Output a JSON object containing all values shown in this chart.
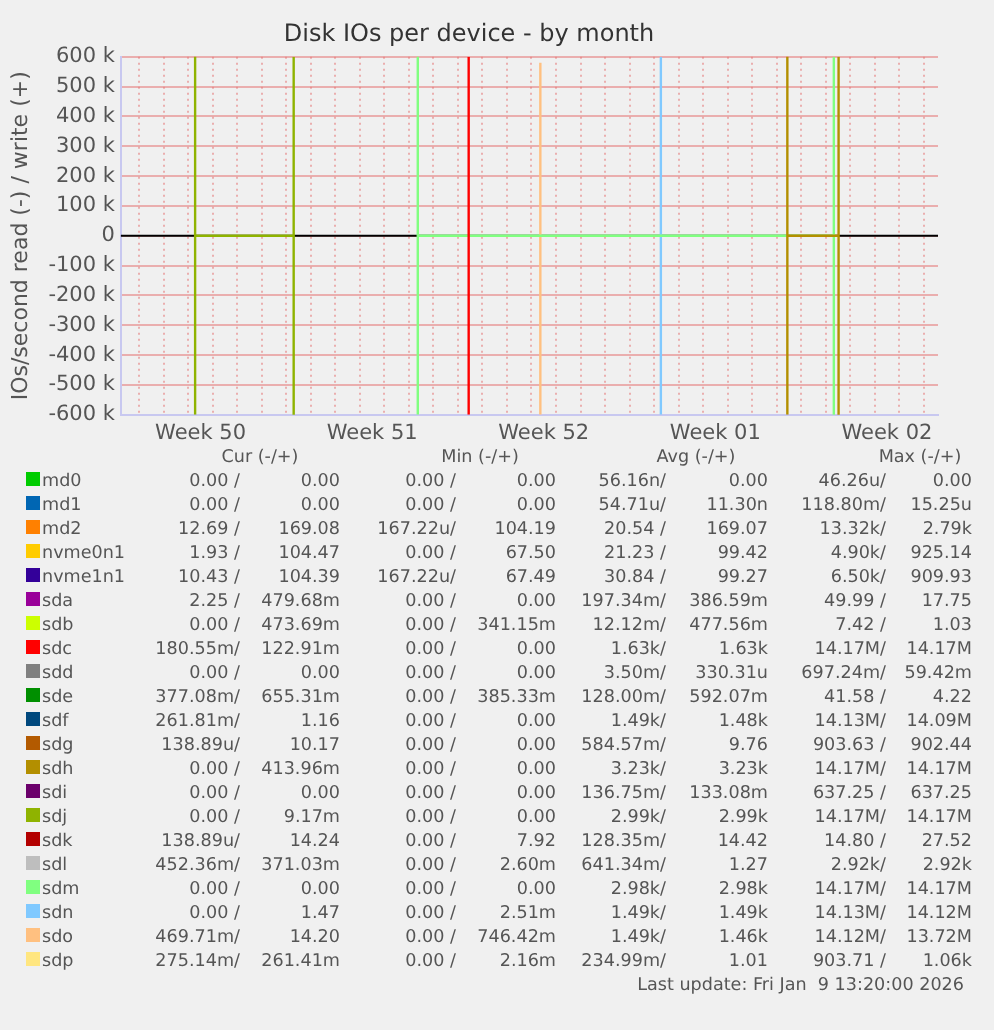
{
  "chart_data": {
    "type": "line",
    "title": "Disk IOs per device - by month",
    "ylabel": "IOs/second read (-) / write (+)",
    "xlim": [
      "2025-12-08T06:00",
      "2026-01-10T14:00"
    ],
    "xticks": [
      {
        "value": "2025-12-09T00:00",
        "label": null
      },
      {
        "value": "2025-12-10T00:00",
        "label": null
      },
      {
        "value": "2025-12-11T00:00",
        "label": null
      },
      {
        "value": "2025-12-11T12:00",
        "label": "Week 50"
      },
      {
        "value": "2025-12-12T00:00",
        "label": null
      },
      {
        "value": "2025-12-13T00:00",
        "label": null
      },
      {
        "value": "2025-12-14T00:00",
        "label": null
      },
      {
        "value": "2025-12-15T00:00",
        "label": null
      },
      {
        "value": "2025-12-16T00:00",
        "label": null
      },
      {
        "value": "2025-12-17T00:00",
        "label": null
      },
      {
        "value": "2025-12-18T00:00",
        "label": null
      },
      {
        "value": "2025-12-18T12:00",
        "label": "Week 51"
      },
      {
        "value": "2025-12-19T00:00",
        "label": null
      },
      {
        "value": "2025-12-20T00:00",
        "label": null
      },
      {
        "value": "2025-12-21T00:00",
        "label": null
      },
      {
        "value": "2025-12-22T00:00",
        "label": null
      },
      {
        "value": "2025-12-23T00:00",
        "label": null
      },
      {
        "value": "2025-12-24T00:00",
        "label": null
      },
      {
        "value": "2025-12-25T00:00",
        "label": null
      },
      {
        "value": "2025-12-25T12:00",
        "label": "Week 52"
      },
      {
        "value": "2025-12-26T00:00",
        "label": null
      },
      {
        "value": "2025-12-27T00:00",
        "label": null
      },
      {
        "value": "2025-12-28T00:00",
        "label": null
      },
      {
        "value": "2025-12-29T00:00",
        "label": null
      },
      {
        "value": "2025-12-30T00:00",
        "label": null
      },
      {
        "value": "2025-12-31T00:00",
        "label": null
      },
      {
        "value": "2026-01-01T00:00",
        "label": null
      },
      {
        "value": "2026-01-01T12:00",
        "label": "Week 01"
      },
      {
        "value": "2026-01-02T00:00",
        "label": null
      },
      {
        "value": "2026-01-03T00:00",
        "label": null
      },
      {
        "value": "2026-01-04T00:00",
        "label": null
      },
      {
        "value": "2026-01-05T00:00",
        "label": null
      },
      {
        "value": "2026-01-06T00:00",
        "label": null
      },
      {
        "value": "2026-01-07T00:00",
        "label": null
      },
      {
        "value": "2026-01-08T00:00",
        "label": null
      },
      {
        "value": "2026-01-08T12:00",
        "label": "Week 02"
      },
      {
        "value": "2026-01-09T00:00",
        "label": null
      },
      {
        "value": "2026-01-10T00:00",
        "label": null
      }
    ],
    "ylim": [
      -600000,
      600000
    ],
    "yticks": [
      {
        "value": -600000,
        "label": "-600 k"
      },
      {
        "value": -500000,
        "label": "-500 k"
      },
      {
        "value": -400000,
        "label": "-400 k"
      },
      {
        "value": -300000,
        "label": "-300 k"
      },
      {
        "value": -200000,
        "label": "-200 k"
      },
      {
        "value": -100000,
        "label": "-100 k"
      },
      0,
      {
        "value": 100000,
        "label": "100 k"
      },
      {
        "value": 200000,
        "label": "200 k"
      },
      {
        "value": 300000,
        "label": "300 k"
      },
      {
        "value": 400000,
        "label": "400 k"
      },
      {
        "value": 500000,
        "label": "500 k"
      },
      {
        "value": 600000,
        "label": "600 k"
      }
    ],
    "grid": true,
    "legend": "bottom",
    "ref_lines": [
      {
        "axis": "y",
        "value": 0,
        "color": "#000000"
      }
    ],
    "series": [
      {
        "name": "md0",
        "color": "#00cc00"
      },
      {
        "name": "md1",
        "color": "#0066b3"
      },
      {
        "name": "md2",
        "color": "#ff8000"
      },
      {
        "name": "nvme0n1",
        "color": "#ffcc00"
      },
      {
        "name": "nvme1n1",
        "color": "#330099"
      },
      {
        "name": "sda",
        "color": "#990099"
      },
      {
        "name": "sdb",
        "color": "#ccff00"
      },
      {
        "name": "sdc",
        "color": "#ff0000",
        "x": [
          "2025-12-22T10:30",
          "2025-12-22T10:30"
        ],
        "values": [
          -600000,
          600000
        ]
      },
      {
        "name": "sdd",
        "color": "#808080"
      },
      {
        "name": "sde",
        "color": "#008f00"
      },
      {
        "name": "sdf",
        "color": "#00487d"
      },
      {
        "name": "sdg",
        "color": "#b35a00"
      },
      {
        "name": "sdh",
        "color": "#b38f00",
        "x": [
          "2026-01-04T10:30",
          "2026-01-04T10:30",
          "2026-01-04T10:30",
          "2026-01-06T12:40",
          "2026-01-06T12:40",
          "2026-01-06T12:40"
        ],
        "values": [
          -600000,
          600000,
          0,
          0,
          -600000,
          600000
        ]
      },
      {
        "name": "sdi",
        "color": "#6b006b"
      },
      {
        "name": "sdj",
        "color": "#8fb300",
        "x": [
          "2025-12-11T06:40",
          "2025-12-11T06:40",
          "2025-12-11T06:40",
          "2025-12-15T07:10",
          "2025-12-15T07:10",
          "2025-12-15T07:10"
        ],
        "values": [
          -600000,
          600000,
          0,
          0,
          -600000,
          600000
        ]
      },
      {
        "name": "sdk",
        "color": "#b30000"
      },
      {
        "name": "sdl",
        "color": "#bebebe"
      },
      {
        "name": "sdm",
        "color": "#80ff80",
        "x": [
          "2025-12-20T08:40",
          "2025-12-20T08:40",
          "2025-12-20T08:40",
          "2026-01-06T08:00",
          "2026-01-06T08:00",
          "2026-01-06T08:00"
        ],
        "values": [
          -600000,
          600000,
          0,
          0,
          -600000,
          600000
        ]
      },
      {
        "name": "sdn",
        "color": "#80c9ff",
        "x": [
          "2025-12-30T06:40",
          "2025-12-30T06:40"
        ],
        "values": [
          -600000,
          600000
        ]
      },
      {
        "name": "sdo",
        "color": "#ffc080",
        "x": [
          "2025-12-25T08:40",
          "2025-12-25T08:40"
        ],
        "values": [
          -600000,
          580000
        ]
      },
      {
        "name": "sdp",
        "color": "#ffe680"
      }
    ],
    "annotations": [
      "Cur (-/+)",
      "Min (-/+)",
      "Avg (-/+)",
      "Max (-/+)",
      "0.00 / 0.00",
      "0.00 / 0.00",
      "56.16n/ 0.00",
      "46.26u/ 0.00",
      "0.00 / 0.00",
      "0.00 / 0.00",
      "54.71u/ 11.30n",
      "118.80m/ 15.25u",
      "12.69 / 169.08",
      "167.22u/ 104.19",
      "20.54 / 169.07",
      "13.32k/ 2.79k",
      "1.93 / 104.47",
      "0.00 / 67.50",
      "21.23 / 99.42",
      "4.90k/ 925.14",
      "10.43 / 104.39",
      "167.22u/ 67.49",
      "30.84 / 99.27",
      "6.50k/ 909.93",
      "2.25 / 479.68m",
      "0.00 / 0.00",
      "197.34m/ 386.59m",
      "49.99 / 17.75",
      "0.00 / 473.69m",
      "0.00 / 341.15m",
      "12.12m/ 477.56m",
      "7.42 / 1.03",
      "180.55m/ 122.91m",
      "0.00 / 0.00",
      "1.63k/ 1.63k",
      "14.17M/ 14.17M",
      "0.00 / 0.00",
      "0.00 / 0.00",
      "3.50m/ 330.31u",
      "697.24m/ 59.42m",
      "377.08m/ 655.31m",
      "0.00 / 385.33m",
      "128.00m/ 592.07m",
      "41.58 / 4.22",
      "261.81m/ 1.16",
      "0.00 / 0.00",
      "1.49k/ 1.48k",
      "14.13M/ 14.09M",
      "138.89u/ 10.17",
      "0.00 / 0.00",
      "584.57m/ 9.76",
      "903.63 / 902.44",
      "0.00 / 413.96m",
      "0.00 / 0.00",
      "3.23k/ 3.23k",
      "14.17M/ 14.17M",
      "0.00 / 0.00",
      "0.00 / 0.00",
      "136.75m/ 133.08m",
      "637.25 / 637.25",
      "0.00 / 9.17m",
      "0.00 / 0.00",
      "2.99k/ 2.99k",
      "14.17M/ 14.17M",
      "138.89u/ 14.24",
      "0.00 / 7.92",
      "128.35m/ 14.42",
      "14.80 / 27.52",
      "452.36m/ 371.03m",
      "0.00 / 2.60m",
      "641.34m/ 1.27",
      "2.92k/ 2.92k",
      "0.00 / 0.00",
      "0.00 / 0.00",
      "2.98k/ 2.98k",
      "14.17M/ 14.17M",
      "0.00 / 1.47",
      "0.00 / 2.51m",
      "1.49k/ 1.49k",
      "14.13M/ 14.12M",
      "469.71m/ 14.20",
      "0.00 / 746.42m",
      "1.49k/ 1.46k",
      "14.12M/ 13.72M",
      "275.14m/ 261.41m",
      "0.00 / 2.16m",
      "234.99m/ 1.01",
      "903.71 / 1.06k",
      "Last update: Fri Jan  9 13:20:00 2026"
    ]
  }
}
